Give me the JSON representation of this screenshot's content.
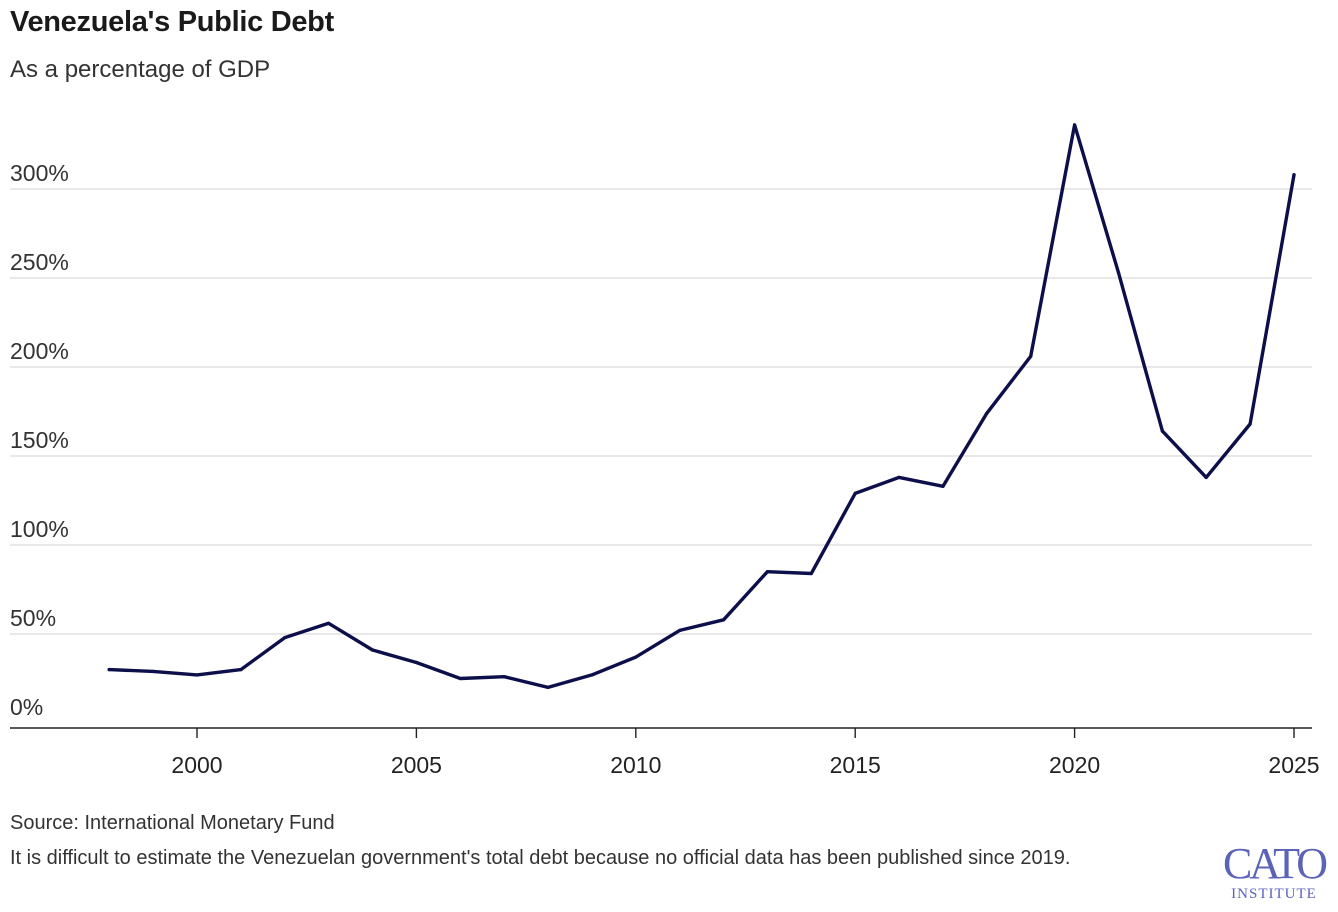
{
  "header": {
    "title": "Venezuela's Public Debt",
    "subtitle": "As a percentage of GDP"
  },
  "footer": {
    "source": "Source: International Monetary Fund",
    "note": "It is difficult to estimate the Venezuelan government's total debt because no official data has been published since 2019."
  },
  "logo": {
    "line1": "CATO",
    "line2": "INSTITUTE",
    "color": "#5b63b7"
  },
  "chart_data": {
    "type": "line",
    "title": "Venezuela's Public Debt",
    "subtitle": "As a percentage of GDP",
    "xlabel": "",
    "ylabel": "",
    "xlim": [
      1996,
      2025.5
    ],
    "ylim": [
      0,
      340
    ],
    "x_ticks": [
      2000,
      2005,
      2010,
      2015,
      2020,
      2025
    ],
    "y_ticks": [
      0,
      50,
      100,
      150,
      200,
      250,
      300
    ],
    "y_tick_labels": [
      "0%",
      "50%",
      "100%",
      "150%",
      "200%",
      "250%",
      "300%"
    ],
    "grid": "horizontal",
    "line_color": "#0d0f4a",
    "series": [
      {
        "x": [
          1998,
          1999,
          2000,
          2001,
          2002,
          2003,
          2004,
          2005,
          2006,
          2007,
          2008,
          2009,
          2010,
          2011,
          2012,
          2013,
          2014,
          2015,
          2016,
          2017,
          2018,
          2019,
          2020,
          2021,
          2022,
          2023,
          2024,
          2025
        ],
        "values": [
          30,
          29,
          27,
          30,
          48,
          56,
          41,
          34,
          25,
          26,
          20,
          27,
          37,
          52,
          58,
          85,
          84,
          129,
          138,
          133,
          174,
          206,
          336,
          253,
          164,
          138,
          168,
          308
        ]
      }
    ]
  }
}
